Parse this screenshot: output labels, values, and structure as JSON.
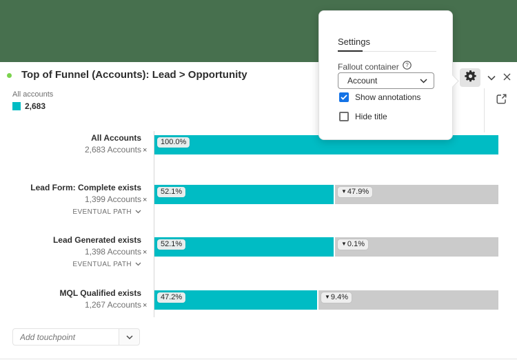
{
  "colors": {
    "banner_green": "#47704e",
    "accent_teal": "#00bcc4",
    "fallout_gray": "#cbcbcb",
    "checkbox_blue": "#1473e6",
    "status_dot_green": "#7bd34e"
  },
  "header": {
    "title": "Top of Funnel (Accounts): Lead > Opportunity",
    "icons": [
      "gear-icon",
      "chevron-down-icon",
      "close-icon",
      "export-icon"
    ]
  },
  "legend": {
    "label": "All accounts",
    "value": "2,683"
  },
  "settings_popup": {
    "tab_label": "Settings",
    "fallout_container_label": "Fallout container",
    "help_icon": "?",
    "dropdown_value": "Account",
    "checkboxes": [
      {
        "label": "Show annotations",
        "checked": true
      },
      {
        "label": "Hide title",
        "checked": false
      }
    ]
  },
  "chart_data": {
    "type": "bar",
    "title": "Top of Funnel (Accounts): Lead > Opportunity",
    "fallout_marker": "▼",
    "xlim_percent": [
      0,
      100
    ],
    "categories": [
      "All Accounts",
      "Lead Form: Complete exists",
      "Lead Generated exists",
      "MQL Qualified exists"
    ],
    "counts": [
      2683,
      1399,
      1398,
      1267
    ],
    "steps": [
      {
        "name": "All Accounts",
        "accounts": "2,683 Accounts",
        "percent": "100.0%",
        "percent_value": 100.0,
        "fallout": null,
        "fallout_value": null,
        "eventual_path": false,
        "remove_label": "×"
      },
      {
        "name": "Lead Form: Complete exists",
        "accounts": "1,399 Accounts",
        "percent": "52.1%",
        "percent_value": 52.1,
        "fallout": "47.9%",
        "fallout_value": 47.9,
        "eventual_path": true,
        "remove_label": "×"
      },
      {
        "name": "Lead Generated exists",
        "accounts": "1,398 Accounts",
        "percent": "52.1%",
        "percent_value": 52.1,
        "fallout": "0.1%",
        "fallout_value": 0.1,
        "eventual_path": true,
        "remove_label": "×"
      },
      {
        "name": "MQL Qualified exists",
        "accounts": "1,267 Accounts",
        "percent": "47.2%",
        "percent_value": 47.2,
        "fallout": "9.4%",
        "fallout_value": 9.4,
        "eventual_path": false,
        "remove_label": "×"
      }
    ],
    "eventual_path_label": "EVENTUAL PATH"
  },
  "add_touchpoint": {
    "placeholder": "Add touchpoint"
  }
}
